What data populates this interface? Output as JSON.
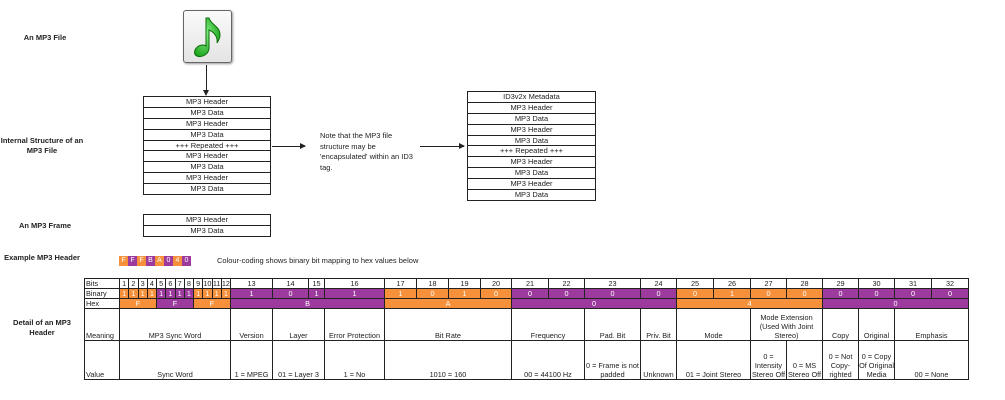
{
  "labels": {
    "mp3_file": "An MP3 File",
    "internal_structure": "Internal Structure of an MP3 File",
    "mp3_frame": "An MP3 Frame",
    "example_header": "Example MP3 Header",
    "detail_header": "Detail of an MP3 Header"
  },
  "icon": "music-note-file-icon",
  "internal_structure": [
    "MP3 Header",
    "MP3 Data",
    "MP3 Header",
    "MP3 Data",
    "+++ Repeated +++",
    "MP3 Header",
    "MP3 Data",
    "MP3 Header",
    "MP3 Data"
  ],
  "note": "Note that the MP3 file structure may be 'encapsulated' within an ID3 tag.",
  "id3_structure": [
    "ID3v2x Metadata",
    "MP3 Header",
    "MP3 Data",
    "MP3 Header",
    "MP3 Data",
    "+++ Repeated +++",
    "MP3 Header",
    "MP3 Data",
    "MP3 Header",
    "MP3 Data"
  ],
  "frame": [
    "MP3 Header",
    "MP3 Data"
  ],
  "example_hex": [
    "F",
    "F",
    "F",
    "B",
    "A",
    "0",
    "4",
    "0"
  ],
  "colour_caption": "Colour-coding shows binary bit mapping to hex values below",
  "colors": {
    "orange": "#f7903a",
    "purple": "#9c3b9d"
  },
  "table": {
    "row_labels": [
      "Bits",
      "Binary",
      "Hex",
      "Meaning",
      "Value"
    ],
    "binary": [
      "1",
      "1",
      "1",
      "1",
      "1",
      "1",
      "1",
      "1",
      "1",
      "1",
      "1",
      "1",
      "1",
      "0",
      "1",
      "1",
      "1",
      "0",
      "1",
      "0",
      "0",
      "0",
      "0",
      "0",
      "0",
      "1",
      "0",
      "0",
      "0",
      "0",
      "0",
      "0"
    ],
    "hex": [
      {
        "value": "F",
        "span": 4,
        "color": "orange"
      },
      {
        "value": "F",
        "span": 4,
        "color": "purple"
      },
      {
        "value": "F",
        "span": 4,
        "color": "orange"
      },
      {
        "value": "B",
        "span": 4,
        "color": "purple"
      },
      {
        "value": "A",
        "span": 4,
        "color": "orange"
      },
      {
        "value": "0",
        "span": 4,
        "color": "purple"
      },
      {
        "value": "4",
        "span": 4,
        "color": "orange"
      },
      {
        "value": "0",
        "span": 4,
        "color": "purple"
      }
    ],
    "meaning": [
      {
        "text": "MP3 Sync Word",
        "span": 12
      },
      {
        "text": "Version",
        "span": 1
      },
      {
        "text": "Layer",
        "span": 2
      },
      {
        "text": "Error Protection",
        "span": 1
      },
      {
        "text": "Bit Rate",
        "span": 4
      },
      {
        "text": "Frequency",
        "span": 2
      },
      {
        "text": "Pad. Bit",
        "span": 1
      },
      {
        "text": "Priv. Bit",
        "span": 1
      },
      {
        "text": "Mode",
        "span": 2
      },
      {
        "text": "Mode Extension (Used With Joint Stereo)",
        "span": 2
      },
      {
        "text": "Copy",
        "span": 1
      },
      {
        "text": "Original",
        "span": 1
      },
      {
        "text": "Emphasis",
        "span": 2
      }
    ],
    "value": [
      {
        "text": "Sync Word",
        "span": 12
      },
      {
        "text": "1 = MPEG",
        "span": 1
      },
      {
        "text": "01 = Layer 3",
        "span": 2
      },
      {
        "text": "1 = No",
        "span": 1
      },
      {
        "text": "1010 = 160",
        "span": 4
      },
      {
        "text": "00 = 44100 Hz",
        "span": 2
      },
      {
        "text": "0 = Frame is not padded",
        "span": 1
      },
      {
        "text": "Unknown",
        "span": 1
      },
      {
        "text": "01 = Joint Stereo",
        "span": 2
      },
      {
        "text": "0 = Intensity Stereo Off",
        "span": 1
      },
      {
        "text": "0 = MS Stereo Off",
        "span": 1
      },
      {
        "text": "0 = Not Copy-righted",
        "span": 1
      },
      {
        "text": "0 = Copy Of Original Media",
        "span": 1
      },
      {
        "text": "00 = None",
        "span": 2
      }
    ]
  }
}
